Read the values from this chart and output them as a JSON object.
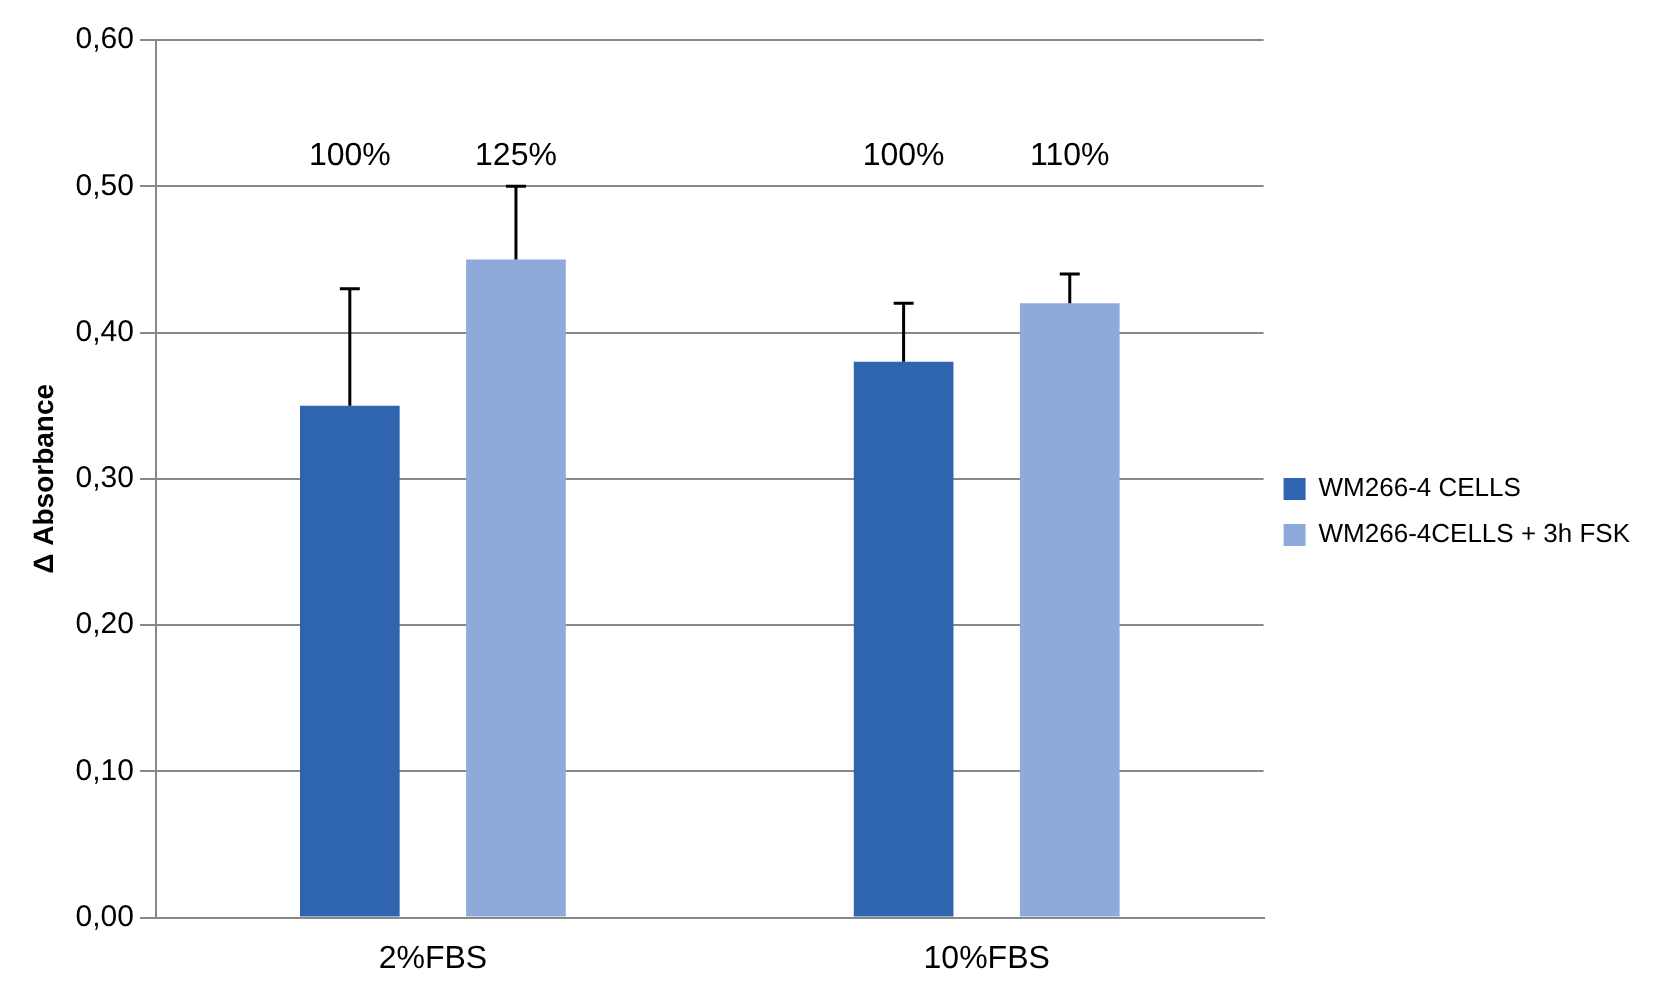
{
  "chart_data": {
    "type": "bar",
    "ylabel": "Δ Absorbance",
    "categories": [
      "2%FBS",
      "10%FBS"
    ],
    "series": [
      {
        "name": "WM266-4 CELLS",
        "color": "#2e64b0",
        "values": [
          0.35,
          0.38
        ],
        "errors": [
          [
            0.35,
            0.43
          ],
          [
            0.38,
            0.42
          ]
        ]
      },
      {
        "name": "WM266-4CELLS + 3h FSK",
        "color": "#8eaadb",
        "values": [
          0.45,
          0.42
        ],
        "errors": [
          [
            0.45,
            0.5
          ],
          [
            0.42,
            0.44
          ]
        ]
      }
    ],
    "annotations": [
      "100%",
      "125%",
      "100%",
      "110%"
    ],
    "ylim": [
      0,
      0.6
    ],
    "yticks": [
      {
        "value": 0,
        "label": "0,00"
      },
      {
        "value": 0.1,
        "label": "0,10"
      },
      {
        "value": 0.2,
        "label": "0,20"
      },
      {
        "value": 0.3,
        "label": "0,30"
      },
      {
        "value": 0.4,
        "label": "0,40"
      },
      {
        "value": 0.5,
        "label": "0,50"
      },
      {
        "value": 0.6,
        "label": "0,60"
      }
    ],
    "grid": "y",
    "legend": "right"
  }
}
